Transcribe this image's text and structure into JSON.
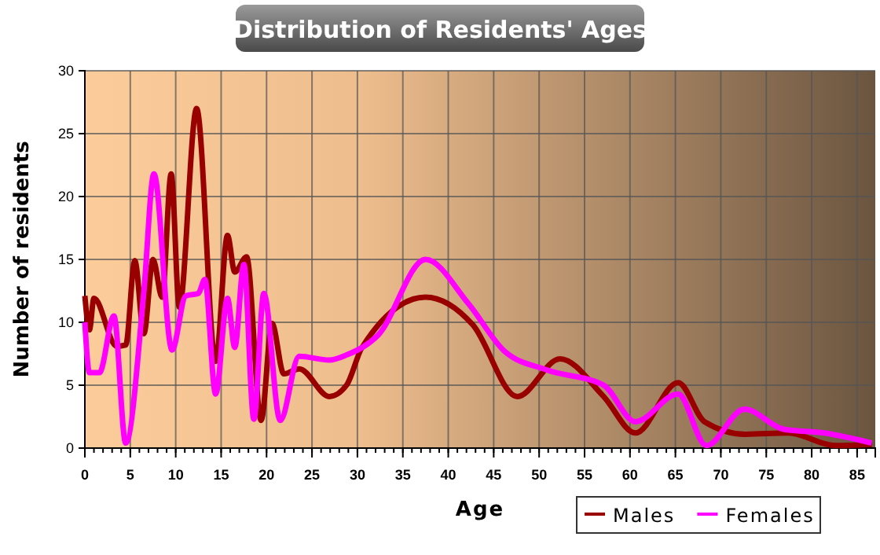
{
  "chart_data": {
    "type": "line",
    "title": "Distribution of Residents' Ages",
    "xlabel": "Age",
    "ylabel": "Number of residents",
    "xlim": [
      0,
      87
    ],
    "xticks": [
      0,
      5,
      10,
      15,
      20,
      25,
      30,
      35,
      40,
      45,
      50,
      55,
      60,
      65,
      70,
      75,
      80,
      85
    ],
    "ylim": [
      0,
      30
    ],
    "yticks": [
      0,
      5,
      10,
      15,
      20,
      25,
      30
    ],
    "grid": true,
    "legend": "bottom right",
    "marker": "none",
    "line_style": "solid",
    "series": [
      {
        "name": "Males",
        "color": "#990000",
        "x": [
          0,
          0.5,
          1,
          3.5,
          4.5,
          5.5,
          6.5,
          7.5,
          8.5,
          9.5,
          10.4,
          12.3,
          14.4,
          15.7,
          16.5,
          17.8,
          19.4,
          20.6,
          21.9,
          23.6,
          26.9,
          28.8,
          30.5,
          37.5,
          42.7,
          47.6,
          52.3,
          57.1,
          60.6,
          65.3,
          68.2,
          72.7,
          77.4,
          82.6,
          86.6
        ],
        "values": [
          12.1,
          9.4,
          11.9,
          8.1,
          8.2,
          14.9,
          9.1,
          15,
          12,
          21.8,
          11.2,
          27,
          6.9,
          16.9,
          14,
          15.2,
          2.2,
          9.9,
          5.9,
          6.3,
          4.1,
          5,
          8,
          12,
          9.8,
          4.1,
          7.1,
          4.1,
          1.2,
          5.2,
          2.1,
          1.1,
          1.2,
          0.2,
          0.3
        ]
      },
      {
        "name": "Females",
        "color": "#ff00ff",
        "x": [
          0,
          0.5,
          1.6,
          3.2,
          4.5,
          6.5,
          7.6,
          9.6,
          11.1,
          12.5,
          13.2,
          14.4,
          15.7,
          16.5,
          17.5,
          18.6,
          19.7,
          21.5,
          23.6,
          26.9,
          28.8,
          32.3,
          37.5,
          42.2,
          46.2,
          50.9,
          57.1,
          60.6,
          65.3,
          68.4,
          72.6,
          76.9,
          81.4,
          86.6
        ],
        "values": [
          10,
          6,
          6,
          10.5,
          0.4,
          12.5,
          21.8,
          7.8,
          12.1,
          12.3,
          13.4,
          4.3,
          11.9,
          8,
          14.6,
          2.3,
          12.3,
          2.2,
          7.3,
          7,
          7.4,
          9,
          15,
          11.5,
          7.7,
          6.2,
          5,
          2.1,
          4.3,
          0.2,
          3.1,
          1.5,
          1.2,
          0.4
        ]
      }
    ]
  }
}
